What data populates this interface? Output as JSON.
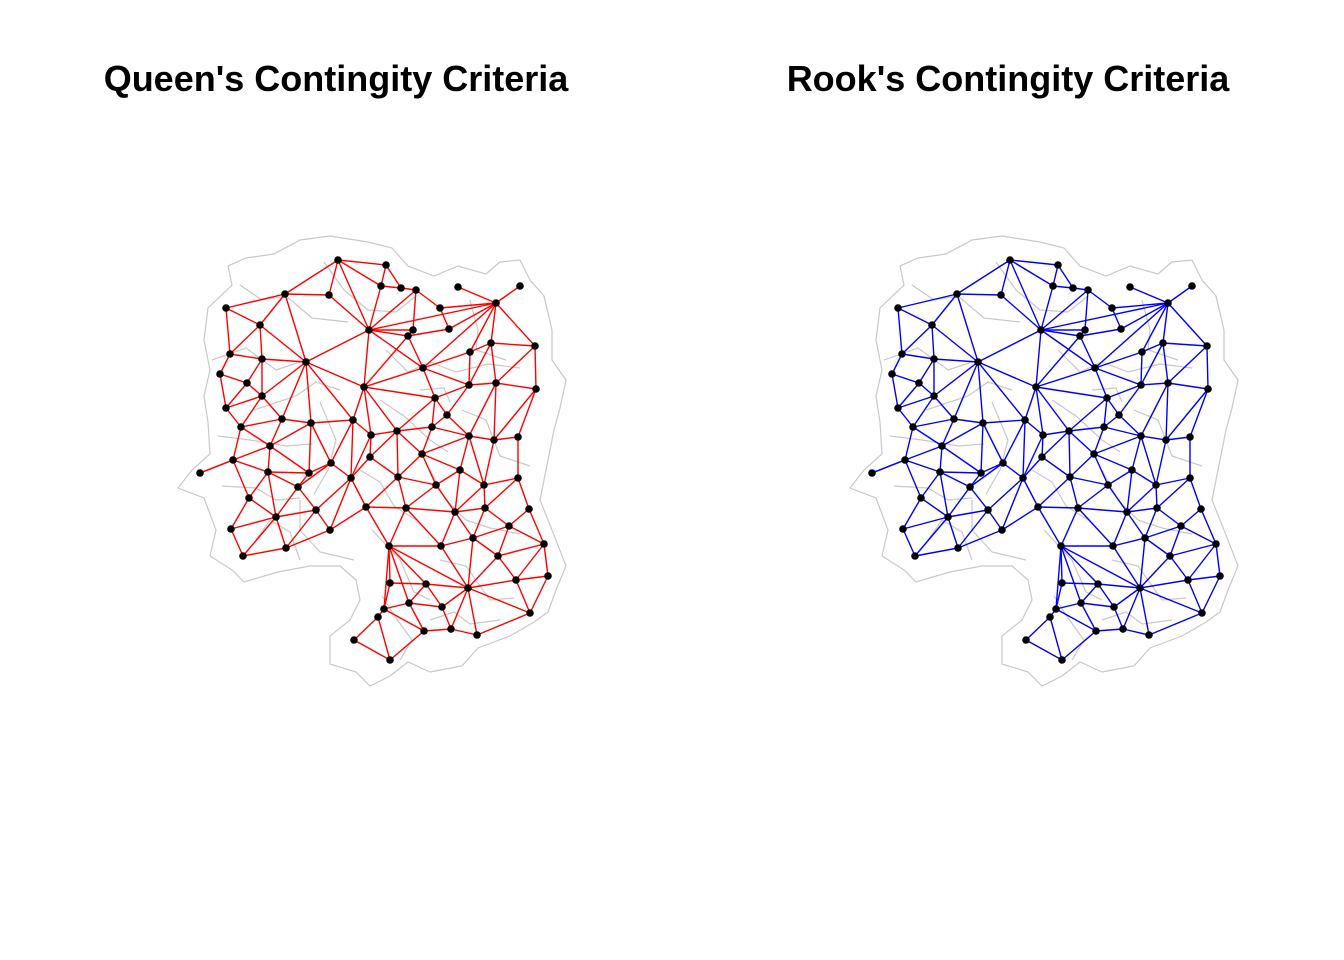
{
  "panels": [
    {
      "id": "queen",
      "title": "Queen's Contingity Criteria",
      "edge_color": "#ff0000"
    },
    {
      "id": "rook",
      "title": "Rook's Contingity Criteria",
      "edge_color": "#0000ff"
    }
  ],
  "colors": {
    "boundary": "#c8c8c8",
    "node": "#000000",
    "background": "#ffffff"
  }
}
